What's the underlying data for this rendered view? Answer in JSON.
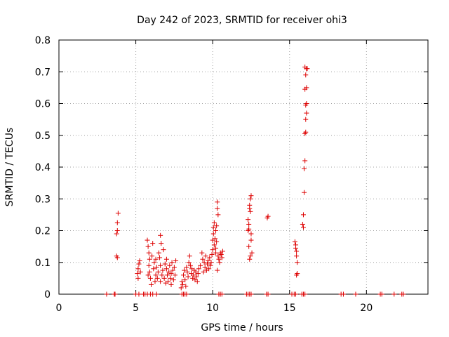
{
  "chart_data": {
    "type": "scatter",
    "title": "Day 242 of 2023, SRMTID for receiver ohi3",
    "xlabel": "GPS time / hours",
    "ylabel": "SRMTID / TECUs",
    "xlim": [
      0,
      24
    ],
    "ylim": [
      0,
      0.8
    ],
    "grid": true,
    "x_ticks": [
      0,
      5,
      10,
      15,
      20
    ],
    "y_ticks": [
      0,
      0.1,
      0.2,
      0.3,
      0.4,
      0.5,
      0.6,
      0.7,
      0.8
    ],
    "x_tick_labels": [
      "0",
      "5",
      "10",
      "15",
      "20"
    ],
    "y_tick_labels": [
      "0",
      "0.1",
      "0.2",
      "0.3",
      "0.4",
      "0.5",
      "0.6",
      "0.7",
      "0.8"
    ],
    "marker": "+",
    "color": "#dd0000",
    "series": [
      {
        "name": "SRMTID",
        "points": [
          [
            3.1,
            0
          ],
          [
            3.6,
            0
          ],
          [
            3.65,
            0
          ],
          [
            3.75,
            0.12
          ],
          [
            3.75,
            0.19
          ],
          [
            3.8,
            0.2
          ],
          [
            3.8,
            0.225
          ],
          [
            3.85,
            0.255
          ],
          [
            3.8,
            0.115
          ],
          [
            5.0,
            0
          ],
          [
            5.2,
            0
          ],
          [
            5.5,
            0
          ],
          [
            5.6,
            0
          ],
          [
            5.75,
            0
          ],
          [
            5.95,
            0
          ],
          [
            6.1,
            0
          ],
          [
            6.35,
            0
          ],
          [
            5.1,
            0.065
          ],
          [
            5.15,
            0.08
          ],
          [
            5.2,
            0.095
          ],
          [
            5.25,
            0.105
          ],
          [
            5.15,
            0.05
          ],
          [
            5.3,
            0.07
          ],
          [
            5.75,
            0.17
          ],
          [
            5.8,
            0.15
          ],
          [
            5.85,
            0.13
          ],
          [
            5.9,
            0.11
          ],
          [
            5.85,
            0.09
          ],
          [
            5.9,
            0.07
          ],
          [
            5.95,
            0.05
          ],
          [
            6.0,
            0.03
          ],
          [
            5.8,
            0.06
          ],
          [
            6.05,
            0.12
          ],
          [
            6.1,
            0.16
          ],
          [
            6.15,
            0.08
          ],
          [
            6.2,
            0.1
          ],
          [
            6.25,
            0.04
          ],
          [
            6.3,
            0.06
          ],
          [
            6.35,
            0.085
          ],
          [
            6.4,
            0.05
          ],
          [
            6.45,
            0.07
          ],
          [
            6.5,
            0.13
          ],
          [
            6.55,
            0.115
          ],
          [
            6.6,
            0.185
          ],
          [
            6.6,
            0.09
          ],
          [
            6.65,
            0.16
          ],
          [
            6.7,
            0.06
          ],
          [
            6.75,
            0.075
          ],
          [
            6.8,
            0.14
          ],
          [
            6.85,
            0.05
          ],
          [
            6.9,
            0.095
          ],
          [
            6.95,
            0.035
          ],
          [
            7.0,
            0.08
          ],
          [
            7.05,
            0.06
          ],
          [
            7.1,
            0.04
          ],
          [
            7.15,
            0.07
          ],
          [
            7.2,
            0.09
          ],
          [
            7.25,
            0.05
          ],
          [
            7.3,
            0.065
          ],
          [
            7.35,
            0.1
          ],
          [
            7.4,
            0.075
          ],
          [
            7.45,
            0.045
          ],
          [
            7.5,
            0.085
          ],
          [
            7.55,
            0.06
          ],
          [
            7.6,
            0.105
          ],
          [
            7.3,
            0.03
          ],
          [
            7.0,
            0.11
          ],
          [
            6.6,
            0.04
          ],
          [
            6.3,
            0.11
          ],
          [
            8.0,
            0
          ],
          [
            8.1,
            0
          ],
          [
            8.2,
            0
          ],
          [
            8.3,
            0
          ],
          [
            7.95,
            0.02
          ],
          [
            8.0,
            0.04
          ],
          [
            8.05,
            0.03
          ],
          [
            8.1,
            0.06
          ],
          [
            8.15,
            0.075
          ],
          [
            8.2,
            0.045
          ],
          [
            8.25,
            0.025
          ],
          [
            8.3,
            0.085
          ],
          [
            8.35,
            0.07
          ],
          [
            8.4,
            0.055
          ],
          [
            8.45,
            0.1
          ],
          [
            8.5,
            0.12
          ],
          [
            8.55,
            0.09
          ],
          [
            8.6,
            0.065
          ],
          [
            8.65,
            0.08
          ],
          [
            8.7,
            0.05
          ],
          [
            8.75,
            0.06
          ],
          [
            8.8,
            0.075
          ],
          [
            8.85,
            0.045
          ],
          [
            8.9,
            0.07
          ],
          [
            8.95,
            0.055
          ],
          [
            9.0,
            0.04
          ],
          [
            9.05,
            0.065
          ],
          [
            9.1,
            0.08
          ],
          [
            9.2,
            0.09
          ],
          [
            9.3,
            0.13
          ],
          [
            9.35,
            0.11
          ],
          [
            9.4,
            0.07
          ],
          [
            9.45,
            0.1
          ],
          [
            9.5,
            0.085
          ],
          [
            9.55,
            0.12
          ],
          [
            9.6,
            0.075
          ],
          [
            9.65,
            0.095
          ],
          [
            9.7,
            0.105
          ],
          [
            9.75,
            0.08
          ],
          [
            9.8,
            0.115
          ],
          [
            9.85,
            0.09
          ],
          [
            9.9,
            0.1
          ],
          [
            9.95,
            0.125
          ],
          [
            10.0,
            0.14
          ],
          [
            10.0,
            0.17
          ],
          [
            10.05,
            0.19
          ],
          [
            10.05,
            0.21
          ],
          [
            10.1,
            0.155
          ],
          [
            10.1,
            0.225
          ],
          [
            10.15,
            0.175
          ],
          [
            10.2,
            0.2
          ],
          [
            10.2,
            0.145
          ],
          [
            10.25,
            0.215
          ],
          [
            10.25,
            0.165
          ],
          [
            10.3,
            0.27
          ],
          [
            10.3,
            0.29
          ],
          [
            10.35,
            0.25
          ],
          [
            10.35,
            0.12
          ],
          [
            10.4,
            0.11
          ],
          [
            10.45,
            0.1
          ],
          [
            10.5,
            0.13
          ],
          [
            10.55,
            0.125
          ],
          [
            10.6,
            0.115
          ],
          [
            10.65,
            0.135
          ],
          [
            10.3,
            0.075
          ],
          [
            10.2,
            0.13
          ],
          [
            10.4,
            0
          ],
          [
            10.5,
            0
          ],
          [
            10.6,
            0
          ],
          [
            12.2,
            0
          ],
          [
            12.3,
            0
          ],
          [
            12.4,
            0
          ],
          [
            12.5,
            0
          ],
          [
            13.5,
            0
          ],
          [
            13.6,
            0
          ],
          [
            12.3,
            0.2
          ],
          [
            12.3,
            0.235
          ],
          [
            12.35,
            0.22
          ],
          [
            12.35,
            0.15
          ],
          [
            12.4,
            0.27
          ],
          [
            12.4,
            0.28
          ],
          [
            12.45,
            0.3
          ],
          [
            12.45,
            0.26
          ],
          [
            12.5,
            0.31
          ],
          [
            12.5,
            0.17
          ],
          [
            12.55,
            0.13
          ],
          [
            12.4,
            0.11
          ],
          [
            12.45,
            0.12
          ],
          [
            12.5,
            0.19
          ],
          [
            12.35,
            0.205
          ],
          [
            13.55,
            0.24
          ],
          [
            13.6,
            0.245
          ],
          [
            15.15,
            0
          ],
          [
            15.3,
            0
          ],
          [
            15.4,
            0
          ],
          [
            15.8,
            0
          ],
          [
            15.9,
            0
          ],
          [
            16.0,
            0
          ],
          [
            15.35,
            0.165
          ],
          [
            15.4,
            0.155
          ],
          [
            15.4,
            0.145
          ],
          [
            15.45,
            0.135
          ],
          [
            15.45,
            0.12
          ],
          [
            15.5,
            0.1
          ],
          [
            15.5,
            0.065
          ],
          [
            15.45,
            0.06
          ],
          [
            15.85,
            0.22
          ],
          [
            15.9,
            0.21
          ],
          [
            15.9,
            0.25
          ],
          [
            15.95,
            0.32
          ],
          [
            15.95,
            0.395
          ],
          [
            16.0,
            0.42
          ],
          [
            16.0,
            0.505
          ],
          [
            16.05,
            0.51
          ],
          [
            16.05,
            0.55
          ],
          [
            16.1,
            0.57
          ],
          [
            16.1,
            0.6
          ],
          [
            16.05,
            0.595
          ],
          [
            16.0,
            0.645
          ],
          [
            16.1,
            0.65
          ],
          [
            16.05,
            0.69
          ],
          [
            16.1,
            0.71
          ],
          [
            16.0,
            0.715
          ],
          [
            16.15,
            0.71
          ],
          [
            18.35,
            0
          ],
          [
            18.5,
            0
          ],
          [
            19.3,
            0
          ],
          [
            20.9,
            0
          ],
          [
            21.0,
            0
          ],
          [
            21.8,
            0
          ],
          [
            22.3,
            0
          ],
          [
            22.4,
            0
          ]
        ]
      }
    ]
  }
}
